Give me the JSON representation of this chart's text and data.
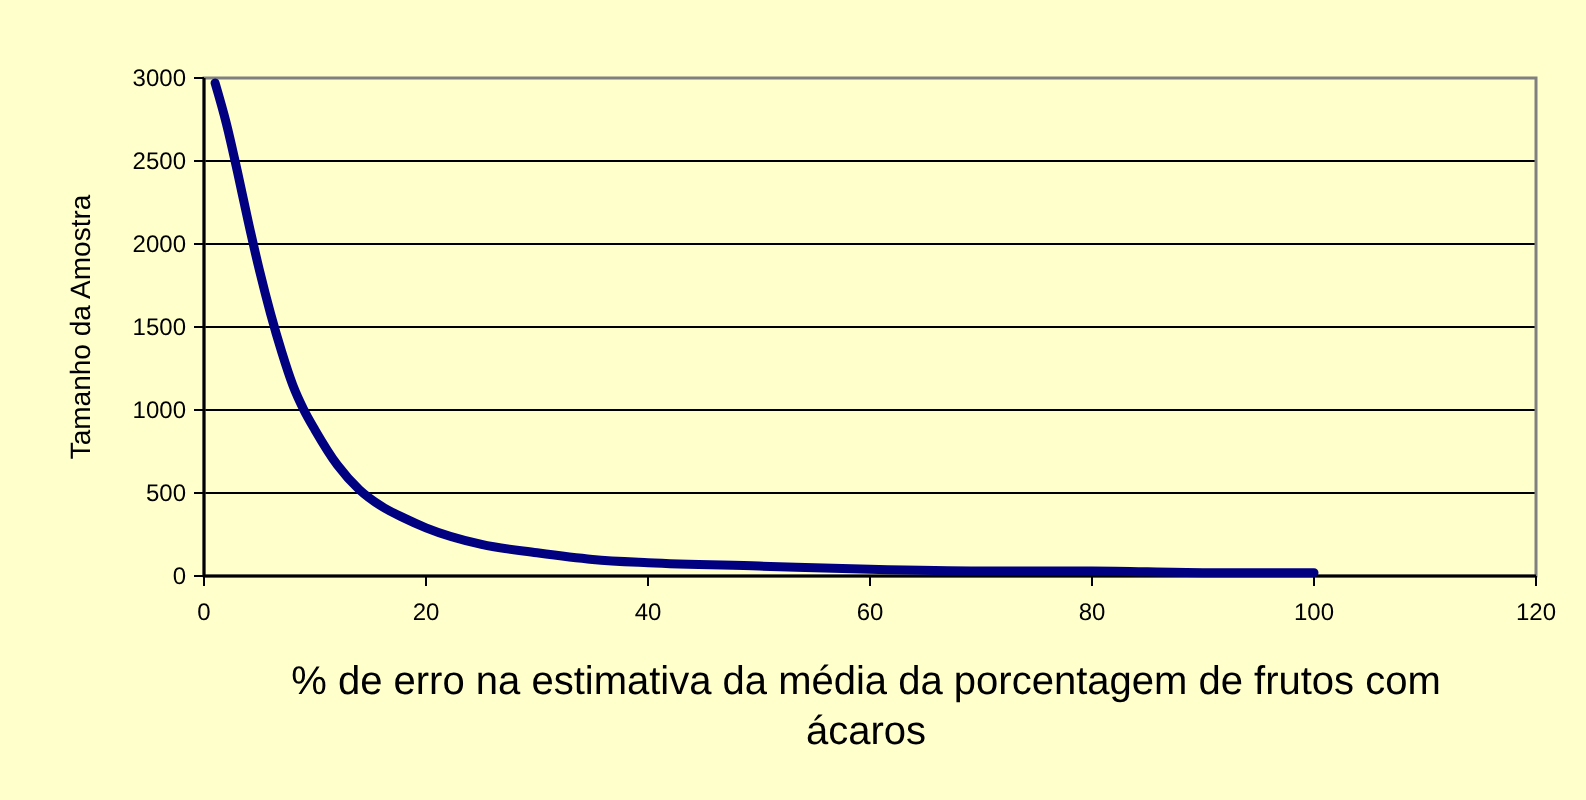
{
  "chart_data": {
    "type": "line",
    "xlabel": "% de erro na estimativa da média da porcentagem de frutos com ácaros",
    "ylabel": "Tamanho da Amostra",
    "x": [
      1,
      2,
      3,
      4,
      5,
      6,
      7,
      8,
      9,
      10,
      12,
      14,
      16,
      18,
      20,
      25,
      30,
      35,
      40,
      50,
      60,
      70,
      80,
      90,
      100
    ],
    "series": [
      {
        "color": "#000080",
        "values": [
          2970,
          2730,
          2440,
          2130,
          1840,
          1580,
          1350,
          1150,
          1000,
          880,
          670,
          520,
          420,
          350,
          290,
          190,
          140,
          100,
          80,
          60,
          40,
          30,
          30,
          20,
          20
        ]
      }
    ],
    "xlim": [
      0,
      120
    ],
    "xticks": [
      0,
      20,
      40,
      60,
      80,
      100,
      120
    ],
    "ylim": [
      0,
      3000
    ],
    "yticks": [
      0,
      500,
      1000,
      1500,
      2000,
      2500,
      3000
    ],
    "grid": "y"
  }
}
